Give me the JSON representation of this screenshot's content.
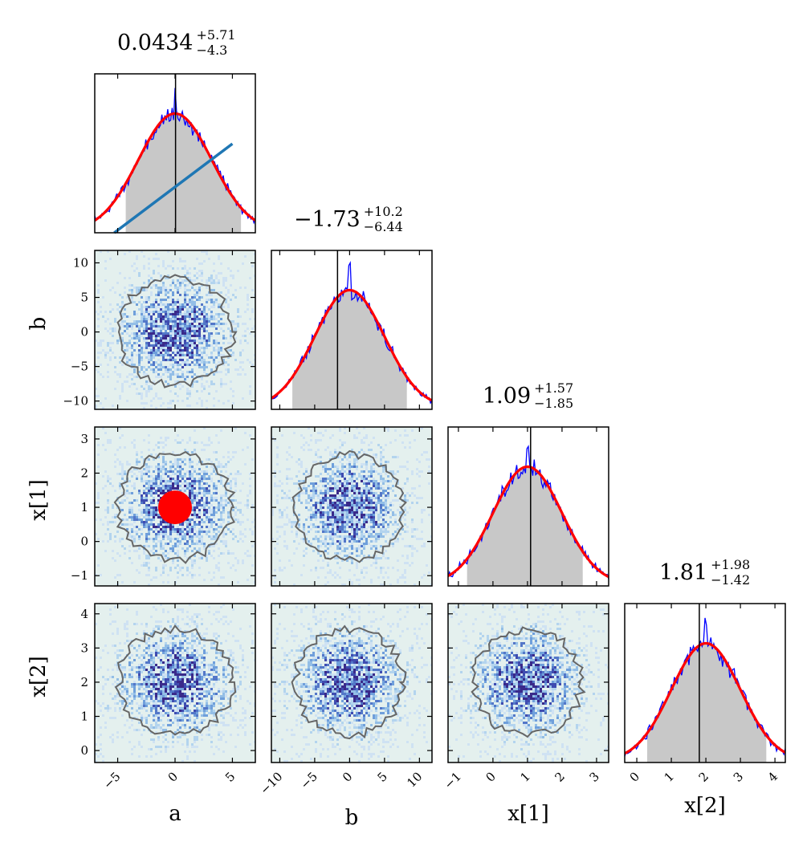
{
  "chart_data": {
    "type": "corner",
    "parameters": [
      "a",
      "b",
      "x[1]",
      "x[2]"
    ],
    "axis_labels": {
      "x": [
        "a",
        "b",
        "x[1]",
        "x[2]"
      ],
      "y": [
        "b",
        "x[1]",
        "x[2]"
      ]
    },
    "ranges": {
      "a": [
        -7,
        7
      ],
      "b": [
        -11.2,
        11.8
      ],
      "x[1]": [
        -1.3,
        3.35
      ],
      "x[2]": [
        -0.35,
        4.3
      ]
    },
    "ticks": {
      "a": [
        -5,
        0,
        5
      ],
      "b": [
        -10,
        -5,
        0,
        5,
        10
      ],
      "x[1]": [
        -1,
        0,
        1,
        2,
        3
      ],
      "x[2]": [
        0,
        1,
        2,
        3,
        4
      ]
    },
    "summary_titles": [
      {
        "param": "a",
        "median": "0.0434",
        "plus": "+5.71",
        "minus": "−4.3"
      },
      {
        "param": "b",
        "median": "−1.73",
        "plus": "+10.2",
        "minus": "−6.44"
      },
      {
        "param": "x[1]",
        "median": "1.09",
        "plus": "+1.57",
        "minus": "−1.85"
      },
      {
        "param": "x[2]",
        "median": "1.81",
        "plus": "+1.98",
        "minus": "−1.42"
      }
    ],
    "medians": {
      "a": 0.0434,
      "b": -1.73,
      "x[1]": 1.09,
      "x[2]": 1.81
    },
    "marginals": [
      {
        "param": "a",
        "gaussian_fit": {
          "mean": 0.0,
          "sigma": 3.2
        },
        "shaded_interval": [
          -4.3,
          5.75
        ]
      },
      {
        "param": "b",
        "gaussian_fit": {
          "mean": 0.0,
          "sigma": 5.0
        },
        "shaded_interval": [
          -8.2,
          8.2
        ]
      },
      {
        "param": "x[1]",
        "gaussian_fit": {
          "mean": 1.0,
          "sigma": 1.0
        },
        "shaded_interval": [
          -0.75,
          2.6
        ]
      },
      {
        "param": "x[2]",
        "gaussian_fit": {
          "mean": 2.0,
          "sigma": 1.0
        },
        "shaded_interval": [
          0.3,
          3.75
        ]
      }
    ],
    "overlays": [
      {
        "type": "line",
        "panel": "a",
        "color": "#1f77b4",
        "from": {
          "x": -5.3,
          "y_frac": 0.0
        },
        "to": {
          "x": 5.0,
          "y_frac": 0.56
        }
      },
      {
        "type": "point",
        "panel": "x[1] vs a",
        "color": "#ff0000",
        "x": 0.0,
        "y": 1.0
      }
    ],
    "colors": {
      "histogram_line": "#0000ff",
      "gaussian_fit": "#ff0000",
      "shaded": "#c8c8c8",
      "median_line": "#000000",
      "contour": "#666666",
      "density_background": "#e4f0ee",
      "overlay_line": "#1f77b4",
      "overlay_point": "#ff0000"
    }
  }
}
